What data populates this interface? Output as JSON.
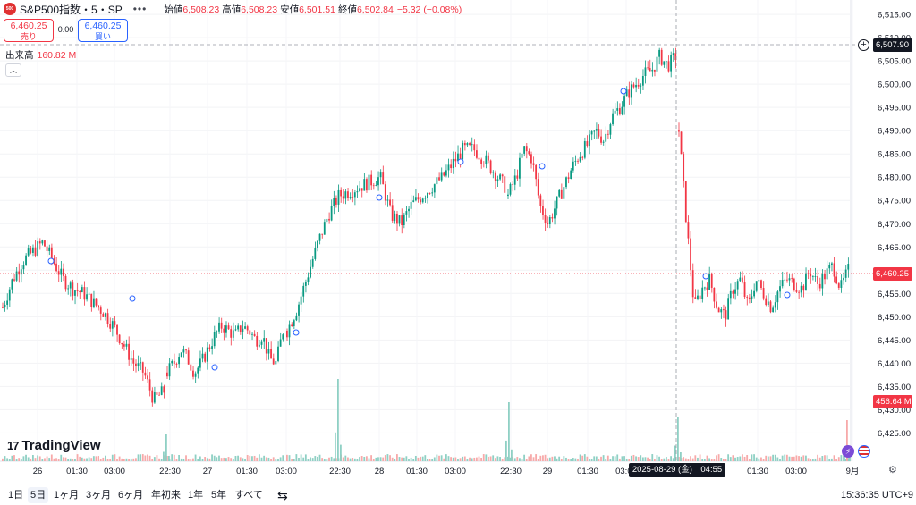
{
  "header": {
    "logo_text": "500",
    "symbol": "S&P500指数・5・SP",
    "more": "•••",
    "ohlc": [
      {
        "label": "始値",
        "value": "6,508.23"
      },
      {
        "label": "高値",
        "value": "6,508.23"
      },
      {
        "label": "安値",
        "value": "6,501.51"
      },
      {
        "label": "終値",
        "value": "6,502.84"
      },
      {
        "label": "",
        "value": "−5.32 (−0.08%)"
      }
    ]
  },
  "trade": {
    "sell_price": "6,460.25",
    "sell_label": "売り",
    "spread": "0.00",
    "buy_price": "6,460.25",
    "buy_label": "買い"
  },
  "volume": {
    "label": "出来高",
    "value": "160.82 M"
  },
  "price_axis": {
    "ticks": [
      "6,515.00",
      "6,510.00",
      "6,505.00",
      "6,500.00",
      "6,495.00",
      "6,490.00",
      "6,485.00",
      "6,480.00",
      "6,475.00",
      "6,470.00",
      "6,465.00",
      "6,460.00",
      "6,455.00",
      "6,450.00",
      "6,445.00",
      "6,440.00",
      "6,435.00",
      "6,430.00",
      "6,425.00"
    ],
    "cursor_price": "6,507.90",
    "last_price": "6,460.25",
    "volume_tag": "456.64 M"
  },
  "time_axis": {
    "labels": [
      "26",
      "01:30",
      "03:00",
      "22:30",
      "27",
      "01:30",
      "03:00",
      "22:30",
      "28",
      "01:30",
      "03:00",
      "22:30",
      "29",
      "01:30",
      "03:00",
      "01:30",
      "03:00",
      "9月"
    ],
    "cursor_date": "2025-08-29 (金)　04:55"
  },
  "branding": {
    "name": "TradingView",
    "mark": "17"
  },
  "colors": {
    "up": "#089981",
    "down": "#f23645",
    "vol_up": "#8fd0c4",
    "vol_down": "#f7a9a9"
  },
  "chart_data": {
    "type": "candlestick",
    "ylim": [
      6422,
      6517
    ],
    "volume_ylim": [
      0,
      700
    ],
    "segments": [
      {
        "session": "08-26",
        "pts": [
          6452,
          6458,
          6462,
          6464,
          6466,
          6462,
          6458,
          6456,
          6455,
          6453,
          6451,
          6448,
          6444,
          6440,
          6438,
          6432,
          6434
        ]
      },
      {
        "session": "08-26 night",
        "pts": [
          6438,
          6440,
          6443,
          6441,
          6438,
          6440,
          6443,
          6446,
          6448,
          6447,
          6446,
          6448,
          6447,
          6445,
          6446,
          6441,
          6440,
          6447
        ]
      },
      {
        "session": "08-27",
        "pts": [
          6447,
          6452,
          6459,
          6466,
          6472,
          6476,
          6477,
          6478,
          6479,
          6480,
          6472,
          6470,
          6474,
          6476,
          6478,
          6480,
          6483,
          6486,
          6486,
          6484,
          6481,
          6478
        ]
      },
      {
        "session": "08-28",
        "pts": [
          6476,
          6480,
          6486,
          6484,
          6474,
          6470,
          6474,
          6478,
          6482,
          6485,
          6487,
          6490,
          6488,
          6493,
          6495,
          6498,
          6500,
          6502,
          6503,
          6506,
          6504,
          6506
        ]
      },
      {
        "session": "08-29",
        "pts": [
          6490,
          6470,
          6452,
          6456,
          6458,
          6452,
          6450,
          6456,
          6458,
          6452,
          6458,
          6455,
          6452,
          6456,
          6458,
          6457,
          6456,
          6460,
          6457,
          6459,
          6461,
          6456,
          6460
        ]
      }
    ],
    "volume_spikes": [
      {
        "x": 185,
        "v": 150
      },
      {
        "x": 377,
        "v": 460
      },
      {
        "x": 568,
        "v": 330
      },
      {
        "x": 757,
        "v": 250
      },
      {
        "x": 946,
        "v": 230
      }
    ]
  }
}
